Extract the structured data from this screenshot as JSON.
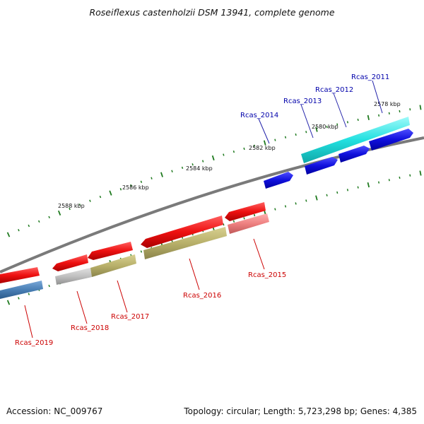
{
  "title": "Roseiflexus castenholzii DSM 13941, complete genome",
  "footer": {
    "accession": "Accession: NC_009767",
    "summary": "Topology: circular; Length: 5,723,298 bp; Genes: 4,385"
  },
  "scale_labels": [
    "2578 kbp",
    "2580 kbp",
    "2582 kbp",
    "2584 kbp",
    "2586 kbp",
    "2588 kbp"
  ],
  "forward_genes": [
    "Rcas_2011",
    "Rcas_2012",
    "Rcas_2013",
    "Rcas_2014"
  ],
  "reverse_genes": [
    "Rcas_2015",
    "Rcas_2016",
    "Rcas_2017",
    "Rcas_2018",
    "Rcas_2019"
  ],
  "colors": {
    "backbone": "#8a8a8a",
    "tick": "#1f7a1f",
    "cds_red": "#ee1111",
    "cds_pink": "#ee8080",
    "cds_olive": "#b8b06a",
    "cds_grey": "#c0c0c0",
    "cds_steel": "#4a7fb5",
    "cds_blue": "#1010dd",
    "cds_cyan": "#22e0e0",
    "label_forward": "#0000aa",
    "label_reverse": "#cc0000"
  }
}
